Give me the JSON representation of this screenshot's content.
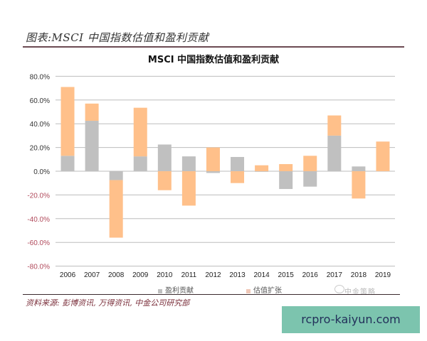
{
  "header": {
    "figure_title": "图表:MSCI 中国指数估值和盈利贡献"
  },
  "footer": {
    "source": "资料来源: 彭博资讯, 万得资讯, 中金公司研究部",
    "brand_watermark": "中金策略"
  },
  "watermark": {
    "text": "rcpro-kaiyun.com",
    "bg_color": "#7cc4ae",
    "text_color": "#22305a"
  },
  "colors": {
    "earnings": "#c0c0c0",
    "valuation": "#ffc08a",
    "grid": "#bdbdbd",
    "negative_tick": "#b0485a",
    "positive_tick": "#333333"
  },
  "chart_data": {
    "type": "bar",
    "stacked": true,
    "title": "MSCI 中国指数估值和盈利贡献",
    "xlabel": "",
    "ylabel": "",
    "ylim": [
      -80,
      80
    ],
    "yticks": [
      "80.0%",
      "60.0%",
      "40.0%",
      "20.0%",
      "0.0%",
      "-20.0%",
      "-40.0%",
      "-60.0%",
      "-80.0%"
    ],
    "ytick_values": [
      80,
      60,
      40,
      20,
      0,
      -20,
      -40,
      -60,
      -80
    ],
    "grid": true,
    "legend_position": "bottom",
    "categories": [
      "2006",
      "2007",
      "2008",
      "2009",
      "2010",
      "2011",
      "2012",
      "2013",
      "2014",
      "2015",
      "2016",
      "2017",
      "2018",
      "2019"
    ],
    "series": [
      {
        "name": "盈利贡献",
        "color": "#c0c0c0",
        "values": [
          13,
          42.5,
          -7.5,
          12.5,
          22.5,
          12.5,
          -1.5,
          12,
          -0.5,
          -15,
          -13,
          30,
          4,
          0
        ]
      },
      {
        "name": "估值扩张",
        "color": "#ffc08a",
        "values": [
          58,
          14.5,
          -48.5,
          41,
          -16,
          -29,
          20,
          -10,
          5,
          6,
          13,
          17,
          -23,
          25
        ]
      }
    ]
  }
}
